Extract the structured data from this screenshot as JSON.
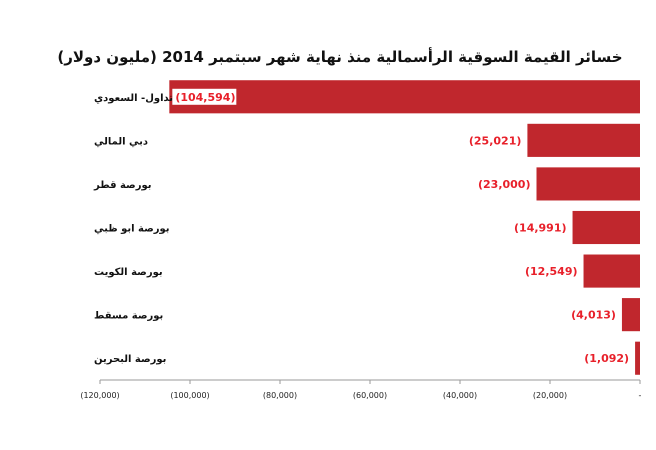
{
  "chart_data": {
    "type": "bar",
    "orientation": "horizontal",
    "title": "خسائر القيمة السوقية الرأسمالية منذ نهاية شهر سبتمبر 2014 (مليون دولار)",
    "categories": [
      "تداول- السعودي",
      "دبي المالي",
      "بورصة قطر",
      "بورصة ابو ظبي",
      "بورصة الكويت",
      "بورصة مسقط",
      "بورصة البحرين"
    ],
    "values": [
      -104594,
      -25021,
      -23000,
      -14991,
      -12549,
      -4013,
      -1092
    ],
    "data_labels": [
      "(104,594)",
      "(25,021)",
      "(23,000)",
      "(14,991)",
      "(12,549)",
      "(4,013)",
      "(1,092)"
    ],
    "xlim": [
      -120000,
      0
    ],
    "x_ticks": [
      -120000,
      -100000,
      -80000,
      -60000,
      -40000,
      -20000,
      0
    ],
    "x_tick_labels": [
      "(120,000)",
      "(100,000)",
      "(80,000)",
      "(60,000)",
      "(40,000)",
      "(20,000)",
      "-"
    ],
    "grid": false,
    "legend": false,
    "colors": {
      "bar": "#c0272d",
      "data_label": "#e8202a",
      "axis": "#9a9a9a",
      "text": "#111111"
    }
  }
}
